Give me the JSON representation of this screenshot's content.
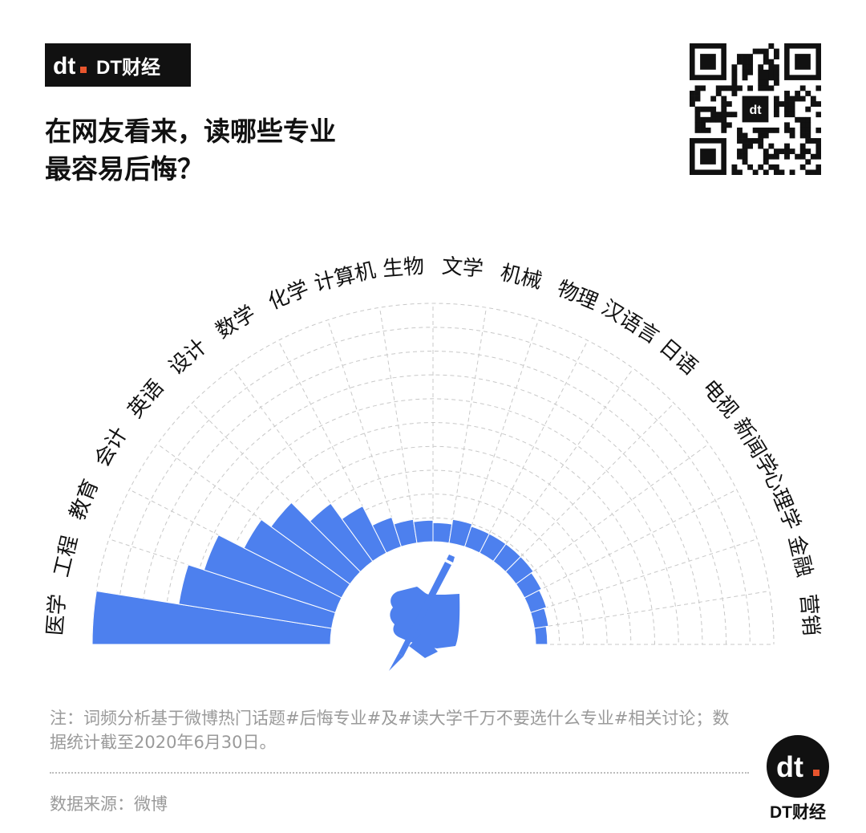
{
  "brand": {
    "name": "DT财经",
    "logo_mark": "dt"
  },
  "title": {
    "line1": "在网友看来，读哪些专业",
    "line2": "最容易后悔？"
  },
  "colors": {
    "bar": "#4d80ee",
    "grid": "#c8c8c8",
    "text": "#111111",
    "muted": "#9a9a9a",
    "accent": "#e8552d"
  },
  "icons": {
    "qr": "qr-code-icon",
    "illustration": "hand-writing-pen-icon"
  },
  "chart_data": {
    "type": "bar",
    "layout": "radial-half",
    "categories": [
      "医学",
      "工程",
      "教育",
      "会计",
      "英语",
      "设计",
      "数学",
      "化学",
      "计算机",
      "生物",
      "文学",
      "机械",
      "物理",
      "汉语言",
      "日语",
      "电视",
      "新闻学",
      "心理学",
      "金融",
      "营销"
    ],
    "values": [
      10,
      6.5,
      5.8,
      4.6,
      4.1,
      3.0,
      2.2,
      1.3,
      1.0,
      0.9,
      0.8,
      1.0,
      0.9,
      0.9,
      0.9,
      0.9,
      0.8,
      0.7,
      0.6,
      0.5
    ],
    "ylim": [
      0,
      10
    ],
    "grid": true,
    "title": "",
    "xlabel": "",
    "ylabel": ""
  },
  "note": "注：词频分析基于微博热门话题#后悔专业#及#读大学千万不要选什么专业#相关讨论；数据统计截至2020年6月30日。",
  "source": "数据来源：微博"
}
